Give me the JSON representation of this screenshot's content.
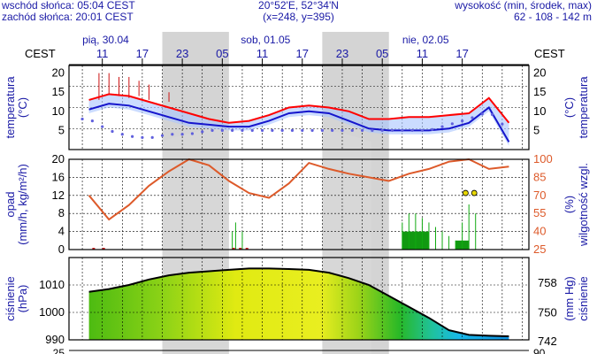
{
  "header": {
    "sunrise": "wschód słońca: 05:04 CEST",
    "sunset": "zachód słońca: 20:01 CEST",
    "coords": "20°52'E, 52°34'N",
    "grid": "(x=248, y=395)",
    "elevation_label": "wysokość (min, środek, max)",
    "elevation_values": "62 - 108 - 142 m"
  },
  "colors": {
    "night_band": "#d4d4d4",
    "temperature_line": "#ff0000",
    "temperature_mid": "#1515cc",
    "dew_point": "#6060dd",
    "humidity": "#dd5a2a",
    "precip": "#11aa11",
    "axis_text": "#1a1aa6",
    "humidity_text": "#dd5a2a"
  },
  "time_axis": {
    "timezone_label": "CEST",
    "days": [
      "pią, 30.04",
      "sob, 01.05",
      "nie, 02.05"
    ],
    "hour_ticks": [
      "11",
      "17",
      "23",
      "05",
      "11",
      "17",
      "23",
      "05",
      "11",
      "17"
    ]
  },
  "chart_data": [
    {
      "type": "line",
      "title": "",
      "ylabel": "temperatura (°C)",
      "ylabel_right": "(°C) temperatura",
      "ylim": [
        0,
        22
      ],
      "yticks": [
        "20",
        "15",
        "10",
        "5"
      ],
      "x": [
        9,
        12,
        15,
        18,
        21,
        24,
        27,
        30,
        33,
        36,
        39,
        42,
        45,
        48,
        51,
        54,
        57,
        60,
        63,
        66,
        69,
        72
      ],
      "series": [
        {
          "values": [
            13,
            14.5,
            14,
            12.5,
            11,
            9.5,
            8,
            7,
            7.5,
            9,
            11,
            11.5,
            11,
            10,
            8,
            8,
            8.5,
            8.5,
            9,
            9.5,
            13.5,
            7
          ]
        },
        {
          "values": [
            10.5,
            12,
            11.5,
            10,
            8.5,
            7,
            6.5,
            6,
            6,
            7.5,
            9.5,
            10,
            9.5,
            7.5,
            5.5,
            5,
            5,
            5,
            5.5,
            7,
            11,
            2
          ]
        },
        {
          "values": [
            8,
            5,
            3.5,
            3,
            4,
            4,
            5,
            5,
            5,
            5,
            5,
            5,
            5,
            5,
            5,
            5,
            5,
            5,
            6.5,
            8,
            10,
            5
          ]
        }
      ]
    },
    {
      "type": "bar",
      "title": "",
      "ylabel": "opad (mm/h, kg/m²/h)",
      "ylabel_right": "(%) wilgotność wzgl.",
      "ylim": [
        0,
        20
      ],
      "yticks": [
        "20",
        "16",
        "12",
        "8",
        "4",
        "0"
      ],
      "yticks_right": [
        "100",
        "85",
        "70",
        "55",
        "40",
        "25"
      ],
      "x": [
        30.5,
        31,
        32,
        56,
        57,
        58,
        59,
        60,
        61,
        62,
        63,
        64,
        65,
        66,
        67
      ],
      "values": [
        4,
        6,
        4,
        6,
        8,
        8,
        7,
        6,
        5,
        4,
        3,
        2,
        6,
        10,
        8
      ],
      "series": [
        {
          "x": [
            9,
            12,
            15,
            18,
            21,
            24,
            27,
            30,
            33,
            36,
            39,
            42,
            45,
            48,
            51,
            54,
            57,
            60,
            63,
            66,
            69,
            72
          ],
          "values": [
            70,
            50,
            62,
            78,
            90,
            100,
            95,
            82,
            72,
            68,
            80,
            97,
            92,
            88,
            85,
            82,
            88,
            92,
            98,
            100,
            92,
            94
          ]
        }
      ]
    },
    {
      "type": "area",
      "title": "",
      "ylabel": "ciśnienie (hPa)",
      "ylabel_right": "(mm Hg) ciśnienie",
      "ylim": [
        990,
        1020
      ],
      "yticks": [
        "1010",
        "1000",
        "990"
      ],
      "yticks_right": [
        "758",
        "750",
        "742"
      ],
      "x": [
        9,
        12,
        15,
        18,
        21,
        24,
        27,
        30,
        33,
        36,
        39,
        42,
        45,
        48,
        51,
        54,
        57,
        60,
        63,
        66,
        69,
        72
      ],
      "values": [
        1007.5,
        1008.5,
        1010,
        1012,
        1013.5,
        1014.5,
        1015,
        1015.5,
        1016,
        1016,
        1015.8,
        1015.5,
        1014.5,
        1012.5,
        1010,
        1006,
        1002,
        998,
        993.5,
        991.8,
        991.5,
        991.3
      ]
    }
  ],
  "next_panel": {
    "left_tick": "25",
    "right_tick": "90"
  }
}
